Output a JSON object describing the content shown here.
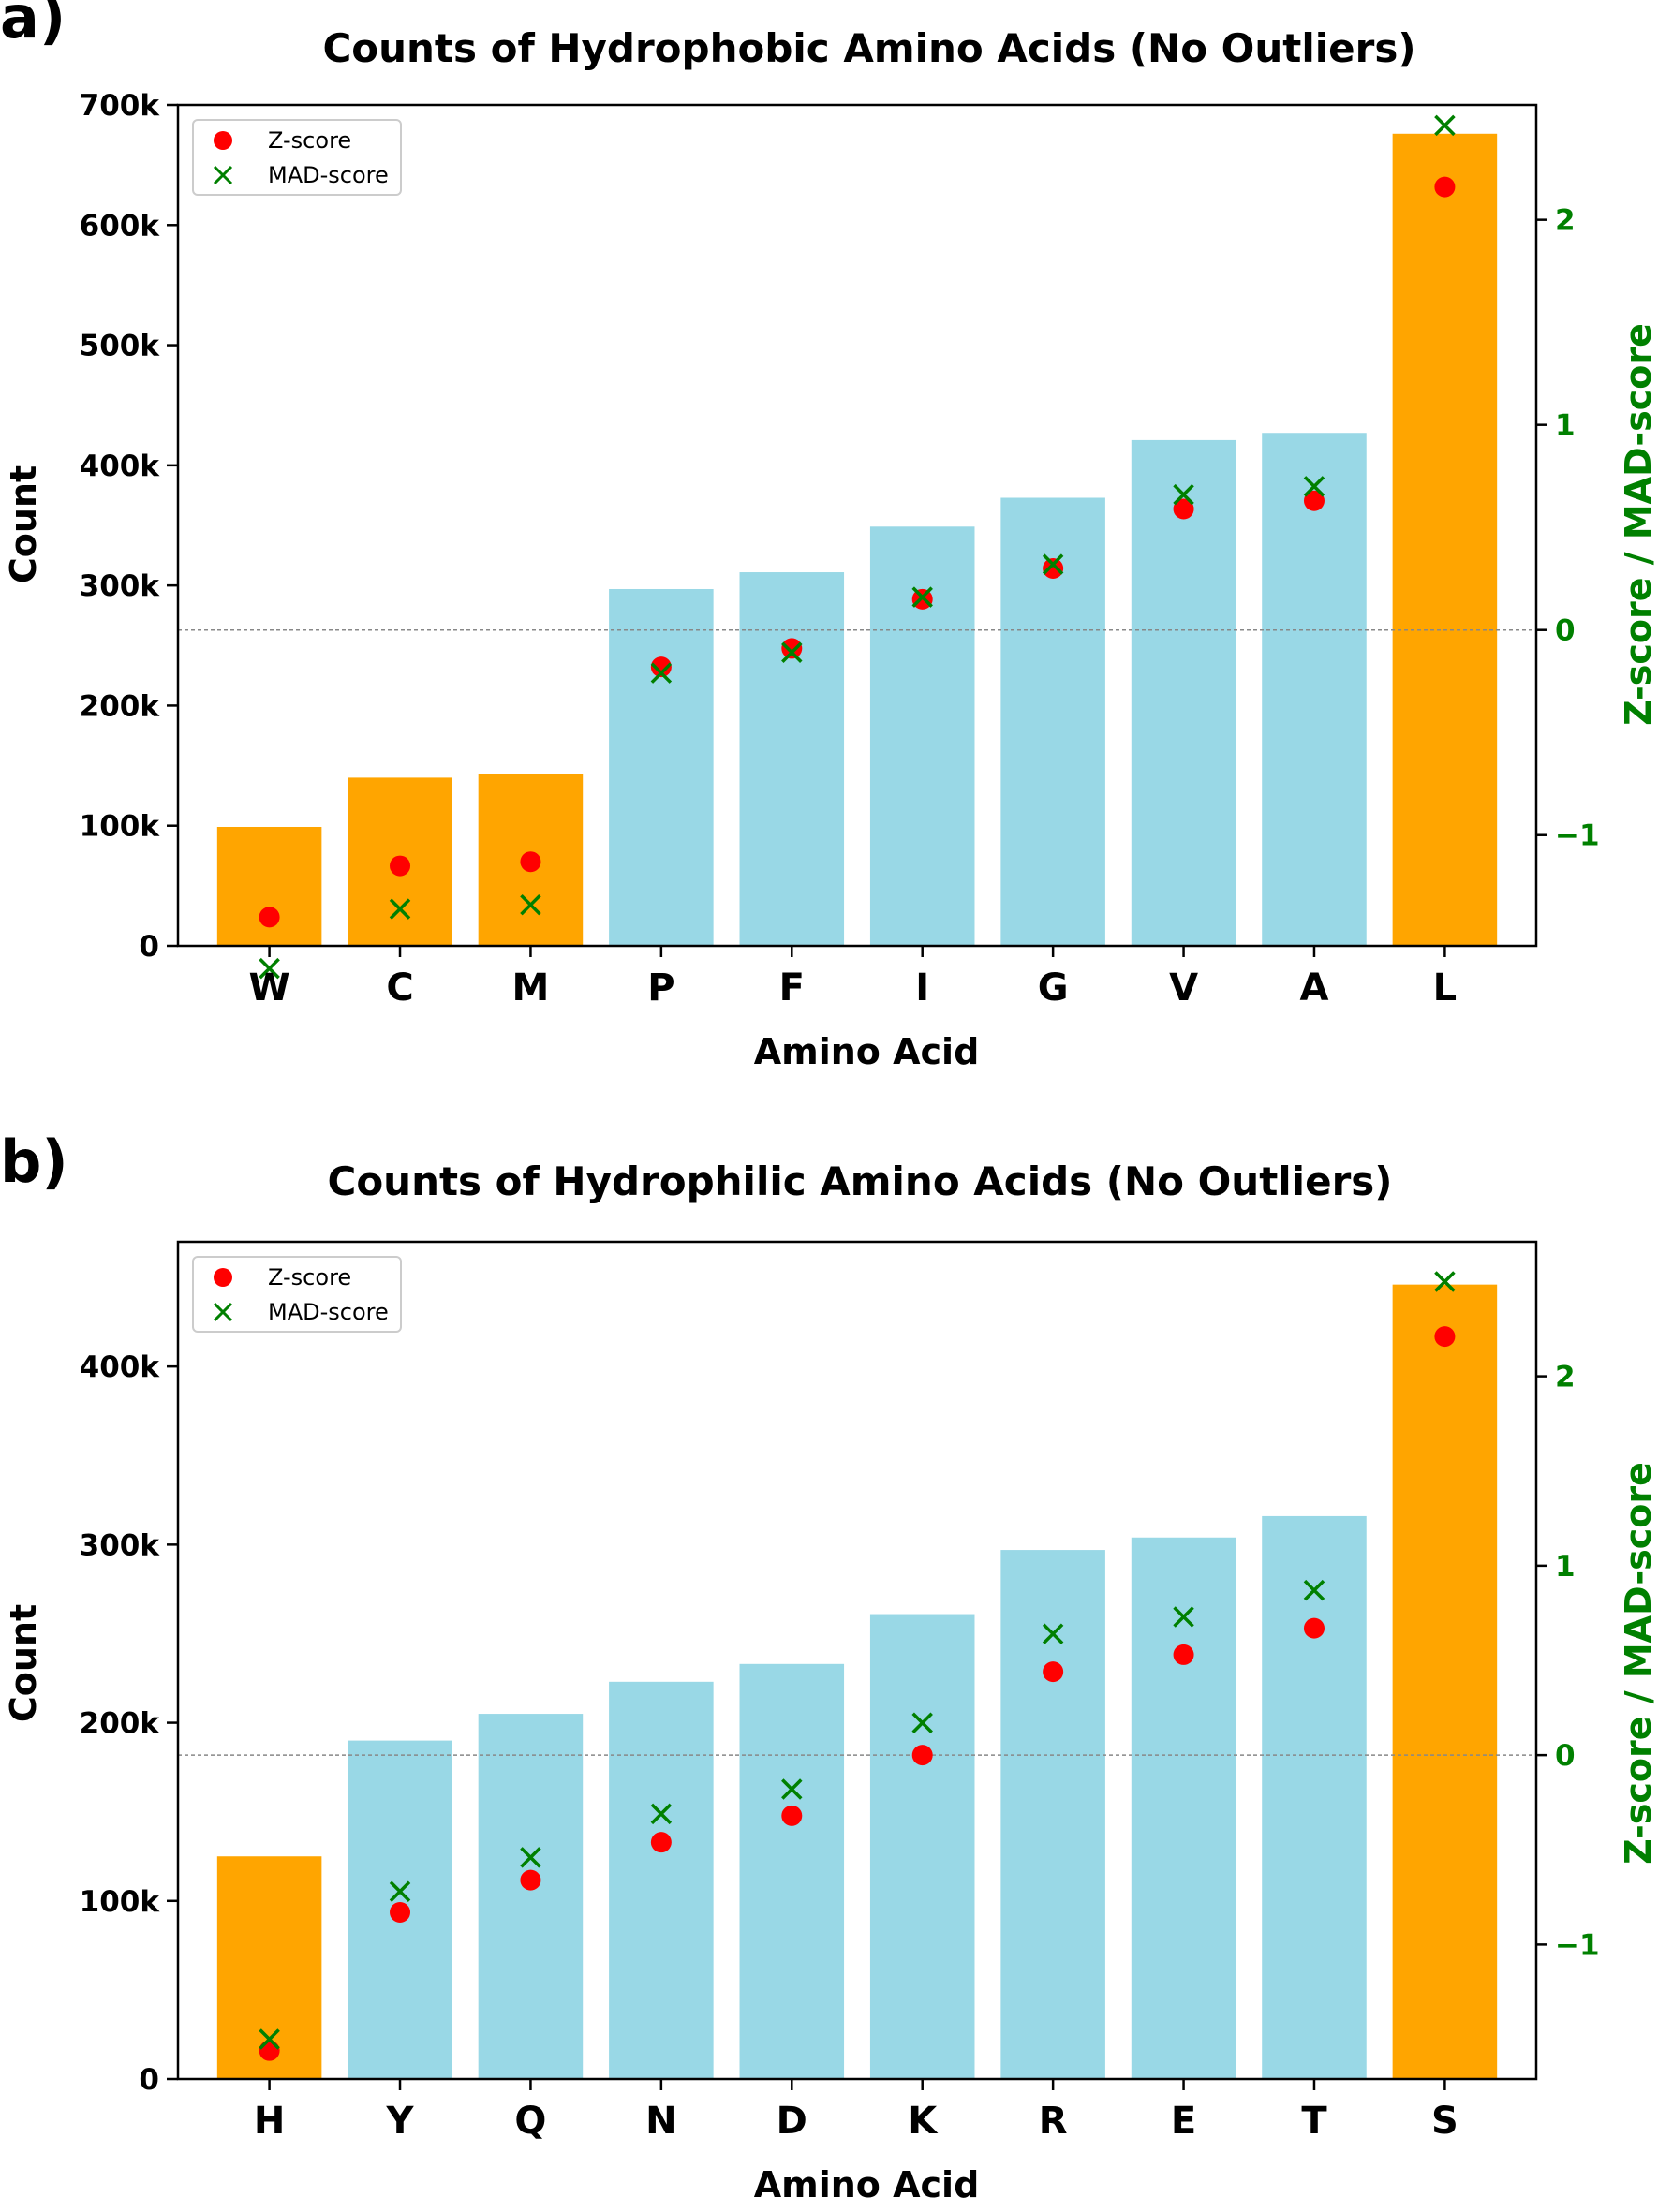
{
  "chart_data": [
    {
      "type": "bar",
      "panel_label": "a)",
      "title": "Counts of Hydrophobic Amino Acids (No Outliers)",
      "xlabel": "Amino Acid",
      "ylabel": "Count",
      "ylabel_right": "Z-score / MAD-score",
      "categories": [
        "W",
        "C",
        "M",
        "P",
        "F",
        "I",
        "G",
        "V",
        "A",
        "L"
      ],
      "values": [
        99000,
        140000,
        143000,
        297000,
        311000,
        349000,
        373000,
        421000,
        427000,
        676000
      ],
      "bar_colors": [
        "#FFA500",
        "#FFA500",
        "#FFA500",
        "#99D8E6",
        "#99D8E6",
        "#99D8E6",
        "#99D8E6",
        "#99D8E6",
        "#99D8E6",
        "#FFA500"
      ],
      "ylim": [
        0,
        700000
      ],
      "yticks": [
        0,
        100000,
        200000,
        300000,
        400000,
        500000,
        600000,
        700000
      ],
      "ytick_labels": [
        "0",
        "100k",
        "200k",
        "300k",
        "400k",
        "500k",
        "600k",
        "700k"
      ],
      "ylim_right": [
        -1.54,
        2.56
      ],
      "yticks_right": [
        -1,
        0,
        1,
        2
      ],
      "ytick_labels_right": [
        "−1",
        "0",
        "1",
        "2"
      ],
      "zero_line": true,
      "series": [
        {
          "name": "Z-score",
          "marker": "circle",
          "color": "#FF0000",
          "values": [
            -1.4,
            -1.15,
            -1.13,
            -0.18,
            -0.09,
            0.15,
            0.3,
            0.59,
            0.63,
            2.16
          ]
        },
        {
          "name": "MAD-score",
          "marker": "x",
          "color": "#008000",
          "values": [
            -1.65,
            -1.36,
            -1.34,
            -0.21,
            -0.11,
            0.16,
            0.32,
            0.66,
            0.7,
            2.46
          ]
        }
      ],
      "legend_position": "top-left",
      "grid": false
    },
    {
      "type": "bar",
      "panel_label": "b)",
      "title": "Counts of Hydrophilic Amino Acids (No Outliers)",
      "xlabel": "Amino Acid",
      "ylabel": "Count",
      "ylabel_right": "Z-score / MAD-score",
      "categories": [
        "H",
        "Y",
        "Q",
        "N",
        "D",
        "K",
        "R",
        "E",
        "T",
        "S"
      ],
      "values": [
        125000,
        190000,
        205000,
        223000,
        233000,
        261000,
        297000,
        304000,
        316000,
        446000
      ],
      "bar_colors": [
        "#FFA500",
        "#99D8E6",
        "#99D8E6",
        "#99D8E6",
        "#99D8E6",
        "#99D8E6",
        "#99D8E6",
        "#99D8E6",
        "#99D8E6",
        "#FFA500"
      ],
      "ylim": [
        0,
        470000
      ],
      "yticks": [
        0,
        100000,
        200000,
        300000,
        400000
      ],
      "ytick_labels": [
        "0",
        "100k",
        "200k",
        "300k",
        "400k"
      ],
      "ylim_right": [
        -1.71,
        2.71
      ],
      "yticks_right": [
        -1,
        0,
        1,
        2
      ],
      "ytick_labels_right": [
        "−1",
        "0",
        "1",
        "2"
      ],
      "zero_line": true,
      "series": [
        {
          "name": "Z-score",
          "marker": "circle",
          "color": "#FF0000",
          "values": [
            -1.56,
            -0.83,
            -0.66,
            -0.46,
            -0.32,
            0.0,
            0.44,
            0.53,
            0.67,
            2.21
          ]
        },
        {
          "name": "MAD-score",
          "marker": "x",
          "color": "#008000",
          "values": [
            -1.5,
            -0.72,
            -0.54,
            -0.31,
            -0.18,
            0.17,
            0.64,
            0.73,
            0.87,
            2.5
          ]
        }
      ],
      "legend_position": "top-left",
      "grid": false
    }
  ]
}
